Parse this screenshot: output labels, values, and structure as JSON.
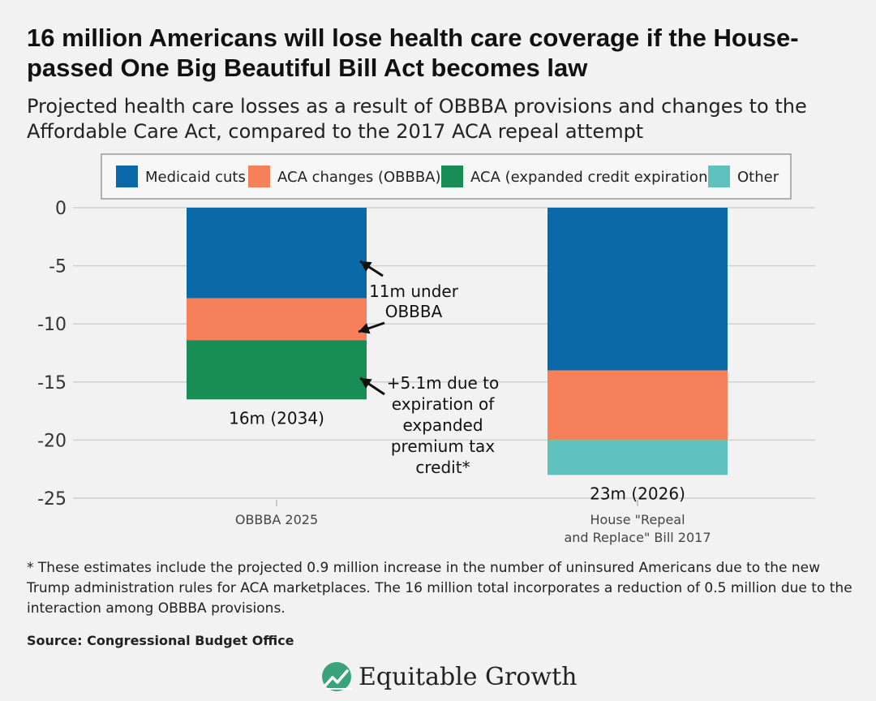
{
  "header": {
    "title": "16 million Americans will lose health care coverage if the House-passed One Big Beautiful Bill Act becomes law",
    "subtitle": "Projected health care losses as a result of OBBBA provisions and changes to the Affordable Care Act, compared to the 2017 ACA repeal attempt"
  },
  "chart_data": {
    "type": "bar",
    "stacked": true,
    "categories": [
      "OBBBA 2025",
      "House \"Repeal and Replace\" Bill 2017"
    ],
    "series": [
      {
        "name": "Medicaid cuts",
        "color": "#0a69a8",
        "values": [
          -7.8,
          -14.0
        ]
      },
      {
        "name": "ACA changes (OBBBA)",
        "color": "#f6805a",
        "values": [
          -3.6,
          -6.0
        ]
      },
      {
        "name": "ACA (expanded credit expiration)",
        "color": "#188d55",
        "values": [
          -5.1,
          0
        ]
      },
      {
        "name": "Other",
        "color": "#5ec1be",
        "values": [
          0,
          -3.0
        ]
      }
    ],
    "ylim": [
      -25,
      0
    ],
    "yticks": [
      0,
      -5,
      -10,
      -15,
      -20,
      -25
    ],
    "grid": true,
    "legend_position": "top",
    "total_labels": [
      "16m (2034)",
      "23m (2026)"
    ],
    "annotations": [
      {
        "text_lines": [
          "11m under",
          "OBBBA"
        ]
      },
      {
        "text_lines": [
          "+5.1m due to",
          "expiration of",
          "expanded",
          "premium tax",
          "credit*"
        ]
      }
    ],
    "category_label_lines": [
      [
        "OBBBA 2025"
      ],
      [
        "House \"Repeal",
        "and Replace\" Bill 2017"
      ]
    ]
  },
  "footnote": "* These estimates include the projected 0.9 million increase in the number of uninsured Americans due to the new Trump administration rules for ACA marketplaces. The 16 million total incorporates a reduction of 0.5 million due to the interaction among OBBBA provisions.",
  "source": "Source: Congressional Budget Office",
  "logo": {
    "text": "Equitable Growth",
    "icon": "equitable-growth-logo-icon"
  }
}
